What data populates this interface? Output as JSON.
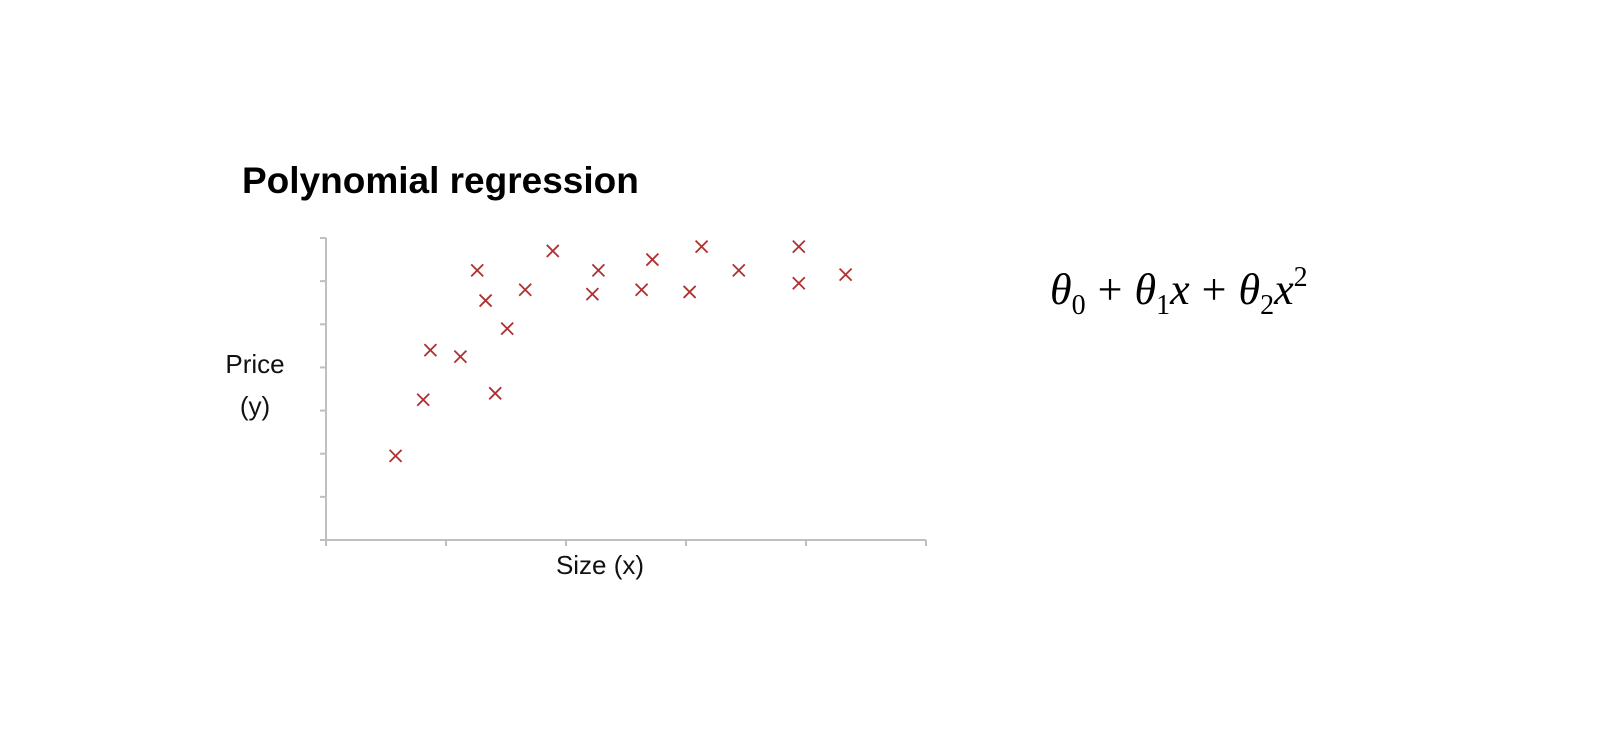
{
  "slide": {
    "title": "Polynomial regression"
  },
  "formula": {
    "theta": "θ",
    "x": "x",
    "plus": "+",
    "sub0": "0",
    "sub1": "1",
    "sub2": "2",
    "power": "2"
  },
  "chart_data": {
    "type": "scatter",
    "xlabel": "Size (x)",
    "ylabel_line1": "Price",
    "ylabel_line2": "(y)",
    "xlim": [
      0,
      5
    ],
    "ylim": [
      0,
      7
    ],
    "x_ticks": 6,
    "y_ticks": 8,
    "tick_labels_shown": false,
    "grid": false,
    "marker": "x",
    "marker_color": "#b03030",
    "axis_color": "#bfbfbf",
    "points": [
      {
        "x": 0.58,
        "y": 1.95
      },
      {
        "x": 0.81,
        "y": 3.25
      },
      {
        "x": 0.87,
        "y": 4.4
      },
      {
        "x": 1.12,
        "y": 4.25
      },
      {
        "x": 1.26,
        "y": 6.25
      },
      {
        "x": 1.33,
        "y": 5.55
      },
      {
        "x": 1.41,
        "y": 3.4
      },
      {
        "x": 1.51,
        "y": 4.9
      },
      {
        "x": 1.66,
        "y": 5.8
      },
      {
        "x": 1.89,
        "y": 6.7
      },
      {
        "x": 2.22,
        "y": 5.7
      },
      {
        "x": 2.27,
        "y": 6.25
      },
      {
        "x": 2.63,
        "y": 5.8
      },
      {
        "x": 2.72,
        "y": 6.5
      },
      {
        "x": 3.03,
        "y": 5.75
      },
      {
        "x": 3.13,
        "y": 6.8
      },
      {
        "x": 3.44,
        "y": 6.25
      },
      {
        "x": 3.94,
        "y": 6.8
      },
      {
        "x": 3.94,
        "y": 5.95
      },
      {
        "x": 4.33,
        "y": 6.15
      }
    ]
  }
}
